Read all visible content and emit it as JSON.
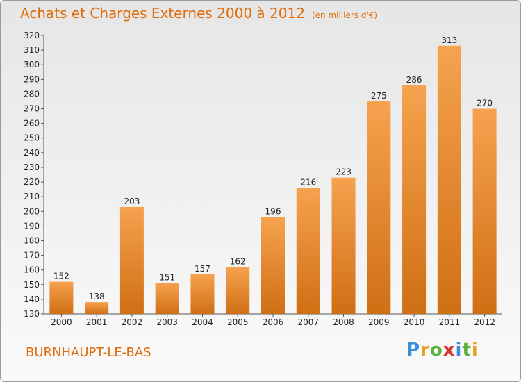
{
  "header": {
    "title": "Achats et Charges Externes 2000 à 2012",
    "unit": "(en milliers d'€)"
  },
  "footer": {
    "commune": "BURNHAUPT-LE-BAS",
    "logo_text": "Proxiti"
  },
  "colors": {
    "accent": "#e26b0a",
    "bar_top": "#f6a24f",
    "bar_bottom": "#d06f14"
  },
  "chart_data": {
    "type": "bar",
    "title": "Achats et Charges Externes 2000 à 2012",
    "subtitle": "(en milliers d'€)",
    "categories": [
      "2000",
      "2001",
      "2002",
      "2003",
      "2004",
      "2005",
      "2006",
      "2007",
      "2008",
      "2009",
      "2010",
      "2011",
      "2012"
    ],
    "values": [
      152,
      138,
      203,
      151,
      157,
      162,
      196,
      216,
      223,
      275,
      286,
      313,
      270
    ],
    "ylim": [
      130,
      320
    ],
    "yticks": [
      130,
      140,
      150,
      160,
      170,
      180,
      190,
      200,
      210,
      220,
      230,
      240,
      250,
      260,
      270,
      280,
      290,
      300,
      310,
      320
    ],
    "grid": false,
    "data_labels": true
  }
}
